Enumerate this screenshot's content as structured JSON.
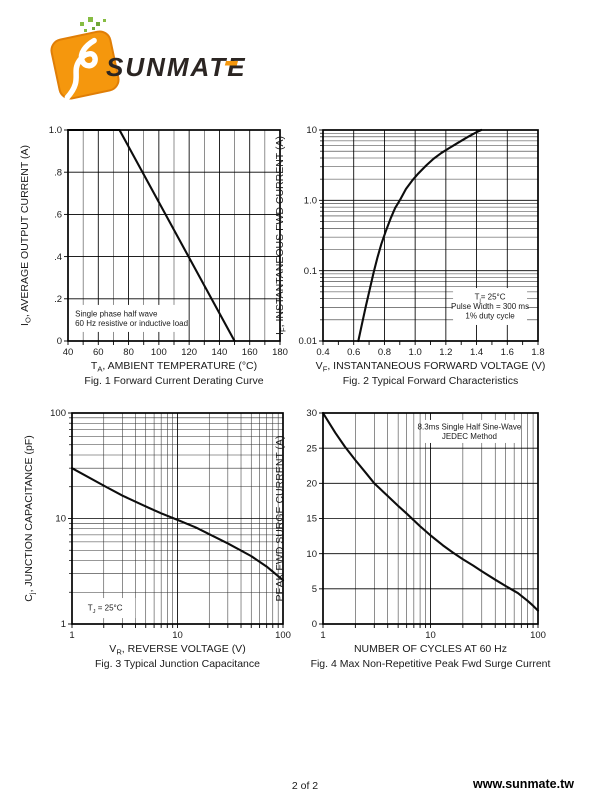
{
  "header": {
    "logo": {
      "brand": "SUNMATE",
      "icon": "sunmate-diamond-logo",
      "colors": {
        "orange": "#F5970D",
        "orange_dark": "#E07E06",
        "green": "#86BC42",
        "text": "#2B2522"
      }
    }
  },
  "footer": {
    "page_indicator": "2 of 2",
    "website": "www.sunmate.tw"
  },
  "chart_data": [
    {
      "id": "fig1",
      "type": "line",
      "title": "Fig. 1  Forward Current Derating Curve",
      "xlabel": [
        {
          "t": "T"
        },
        {
          "s": "A"
        },
        {
          "t": ", AMBIENT TEMPERATURE (°C)"
        }
      ],
      "ylabel": [
        {
          "t": "I"
        },
        {
          "s": "O"
        },
        {
          "t": ", AVERAGE OUTPUT CURRENT (A)"
        }
      ],
      "x": {
        "scale": "linear",
        "lim": [
          40,
          180
        ],
        "major": [
          40,
          60,
          80,
          100,
          120,
          140,
          160,
          180
        ],
        "labels": [
          "40",
          "60",
          "80",
          "100",
          "120",
          "140",
          "160",
          "180"
        ],
        "minor_step": 10,
        "minor_grid": true
      },
      "y": {
        "scale": "linear",
        "lim": [
          0,
          1
        ],
        "major": [
          0,
          0.2,
          0.4,
          0.6,
          0.8,
          1.0
        ],
        "labels": [
          "0",
          ".2",
          ".4",
          ".6",
          ".8",
          "1.0"
        ]
      },
      "series": [
        {
          "name": "derating-curve",
          "points": [
            [
              40,
              1
            ],
            [
              74,
              1
            ],
            [
              150,
              0
            ]
          ]
        }
      ],
      "annotation": {
        "lines": [
          [
            {
              "t": "Single phase half wave"
            }
          ],
          [
            {
              "t": "60 Hz resistive or inductive load"
            }
          ]
        ],
        "align": "left",
        "box": [
          0.01,
          0.829,
          0.56,
          0.957
        ]
      }
    },
    {
      "id": "fig2",
      "type": "line",
      "title": "Fig. 2  Typical Forward Characteristics",
      "xlabel": [
        {
          "t": "V"
        },
        {
          "s": "F"
        },
        {
          "t": ",  INSTANTANEOUS FORWARD VOLTAGE (V)"
        }
      ],
      "ylabel": [
        {
          "t": "I"
        },
        {
          "s": "F"
        },
        {
          "t": ", INSTANTANEOUS FWD CURRENT (A)"
        }
      ],
      "x": {
        "scale": "linear",
        "lim": [
          0.4,
          1.8
        ],
        "major": [
          0.4,
          0.6,
          0.8,
          1.0,
          1.2,
          1.4,
          1.6,
          1.8
        ],
        "labels": [
          "0.4",
          "0.6",
          "0.8",
          "1.0",
          "1.2",
          "1.4",
          "1.6",
          "1.8"
        ],
        "minor_step": 0.1,
        "minor_grid": false
      },
      "y": {
        "scale": "log",
        "lim": [
          0.01,
          10
        ],
        "major": [
          0.01,
          0.1,
          1,
          10
        ],
        "labels": [
          "0.01",
          "0.1",
          "1.0",
          "10"
        ]
      },
      "series": [
        {
          "name": "forward-characteristic",
          "points": [
            [
              0.63,
              0.01
            ],
            [
              0.655,
              0.018
            ],
            [
              0.68,
              0.032
            ],
            [
              0.705,
              0.055
            ],
            [
              0.73,
              0.095
            ],
            [
              0.755,
              0.155
            ],
            [
              0.78,
              0.24
            ],
            [
              0.81,
              0.37
            ],
            [
              0.84,
              0.55
            ],
            [
              0.87,
              0.78
            ],
            [
              0.9,
              1.0
            ],
            [
              0.94,
              1.45
            ],
            [
              0.98,
              1.9
            ],
            [
              1.02,
              2.4
            ],
            [
              1.07,
              3.1
            ],
            [
              1.12,
              3.9
            ],
            [
              1.17,
              4.7
            ],
            [
              1.22,
              5.5
            ],
            [
              1.28,
              6.6
            ],
            [
              1.34,
              7.9
            ],
            [
              1.4,
              9.3
            ],
            [
              1.43,
              10
            ]
          ]
        }
      ],
      "annotation": {
        "lines": [
          [
            {
              "t": "T"
            },
            {
              "s": "j"
            },
            {
              "t": "= 25°C"
            }
          ],
          [
            {
              "t": "Pulse Width = 300 ms"
            }
          ],
          [
            {
              "t": "1% duty cycle"
            }
          ]
        ],
        "align": "center",
        "box": [
          0.605,
          0.749,
          0.949,
          0.924
        ]
      }
    },
    {
      "id": "fig3",
      "type": "line",
      "title": "Fig. 3  Typical Junction Capacitance",
      "xlabel": [
        {
          "t": "V"
        },
        {
          "s": "R"
        },
        {
          "t": ", REVERSE VOLTAGE (V)"
        }
      ],
      "ylabel": [
        {
          "t": "C"
        },
        {
          "s": "j"
        },
        {
          "t": ", JUNCTION CAPACITANCE (pF)"
        }
      ],
      "x": {
        "scale": "log",
        "lim": [
          1,
          100
        ],
        "major": [
          1,
          10,
          100
        ],
        "labels": [
          "1",
          "10",
          "100"
        ]
      },
      "y": {
        "scale": "log",
        "lim": [
          1,
          100
        ],
        "major": [
          1,
          10,
          100
        ],
        "labels": [
          "1",
          "10",
          "100"
        ]
      },
      "series": [
        {
          "name": "junction-capacitance",
          "points": [
            [
              1,
              30
            ],
            [
              2,
              20.5
            ],
            [
              3,
              16.5
            ],
            [
              5,
              13
            ],
            [
              7,
              11.2
            ],
            [
              10,
              9.7
            ],
            [
              15,
              8.2
            ],
            [
              20,
              7.1
            ],
            [
              30,
              5.8
            ],
            [
              50,
              4.4
            ],
            [
              70,
              3.5
            ],
            [
              100,
              2.6
            ]
          ]
        }
      ],
      "annotation": {
        "lines": [
          [
            {
              "t": "T"
            },
            {
              "s": "J"
            },
            {
              "t": " = 25°C"
            }
          ]
        ],
        "align": "center",
        "box": [
          0.014,
          0.877,
          0.3,
          0.972
        ]
      }
    },
    {
      "id": "fig4",
      "type": "line",
      "title": "Fig. 4  Max Non-Repetitive Peak Fwd Surge Current",
      "xlabel": [
        {
          "t": "NUMBER OF CYCLES AT 60 Hz"
        }
      ],
      "ylabel": [
        {
          "t": "PEAK FWD SURGE CURRENT (A)"
        }
      ],
      "x": {
        "scale": "log",
        "lim": [
          1,
          100
        ],
        "major": [
          1,
          10,
          100
        ],
        "labels": [
          "1",
          "10",
          "100"
        ]
      },
      "y": {
        "scale": "linear",
        "lim": [
          0,
          30
        ],
        "major": [
          0,
          5,
          10,
          15,
          20,
          25,
          30
        ],
        "labels": [
          "0",
          "5",
          "10",
          "15",
          "20",
          "25",
          "30"
        ]
      },
      "series": [
        {
          "name": "surge-current",
          "points": [
            [
              1,
              30
            ],
            [
              1.3,
              27.2
            ],
            [
              1.6,
              25.2
            ],
            [
              2,
              23.3
            ],
            [
              2.5,
              21.5
            ],
            [
              3,
              20
            ],
            [
              4,
              18.2
            ],
            [
              5,
              16.8
            ],
            [
              6,
              15.7
            ],
            [
              8,
              13.9
            ],
            [
              10,
              12.6
            ],
            [
              13,
              11.2
            ],
            [
              16,
              10.2
            ],
            [
              20,
              9.2
            ],
            [
              25,
              8.3
            ],
            [
              30,
              7.5
            ],
            [
              40,
              6.3
            ],
            [
              50,
              5.4
            ],
            [
              65,
              4.4
            ],
            [
              80,
              3.3
            ],
            [
              90,
              2.6
            ],
            [
              100,
              1.9
            ]
          ]
        }
      ],
      "annotation": {
        "lines": [
          [
            {
              "t": "8.3ms Single Half Sine-Wave"
            }
          ],
          [
            {
              "t": "JEDEC Method"
            }
          ]
        ],
        "align": "center",
        "box": [
          0.46,
          0.033,
          0.902,
          0.142
        ]
      }
    }
  ]
}
